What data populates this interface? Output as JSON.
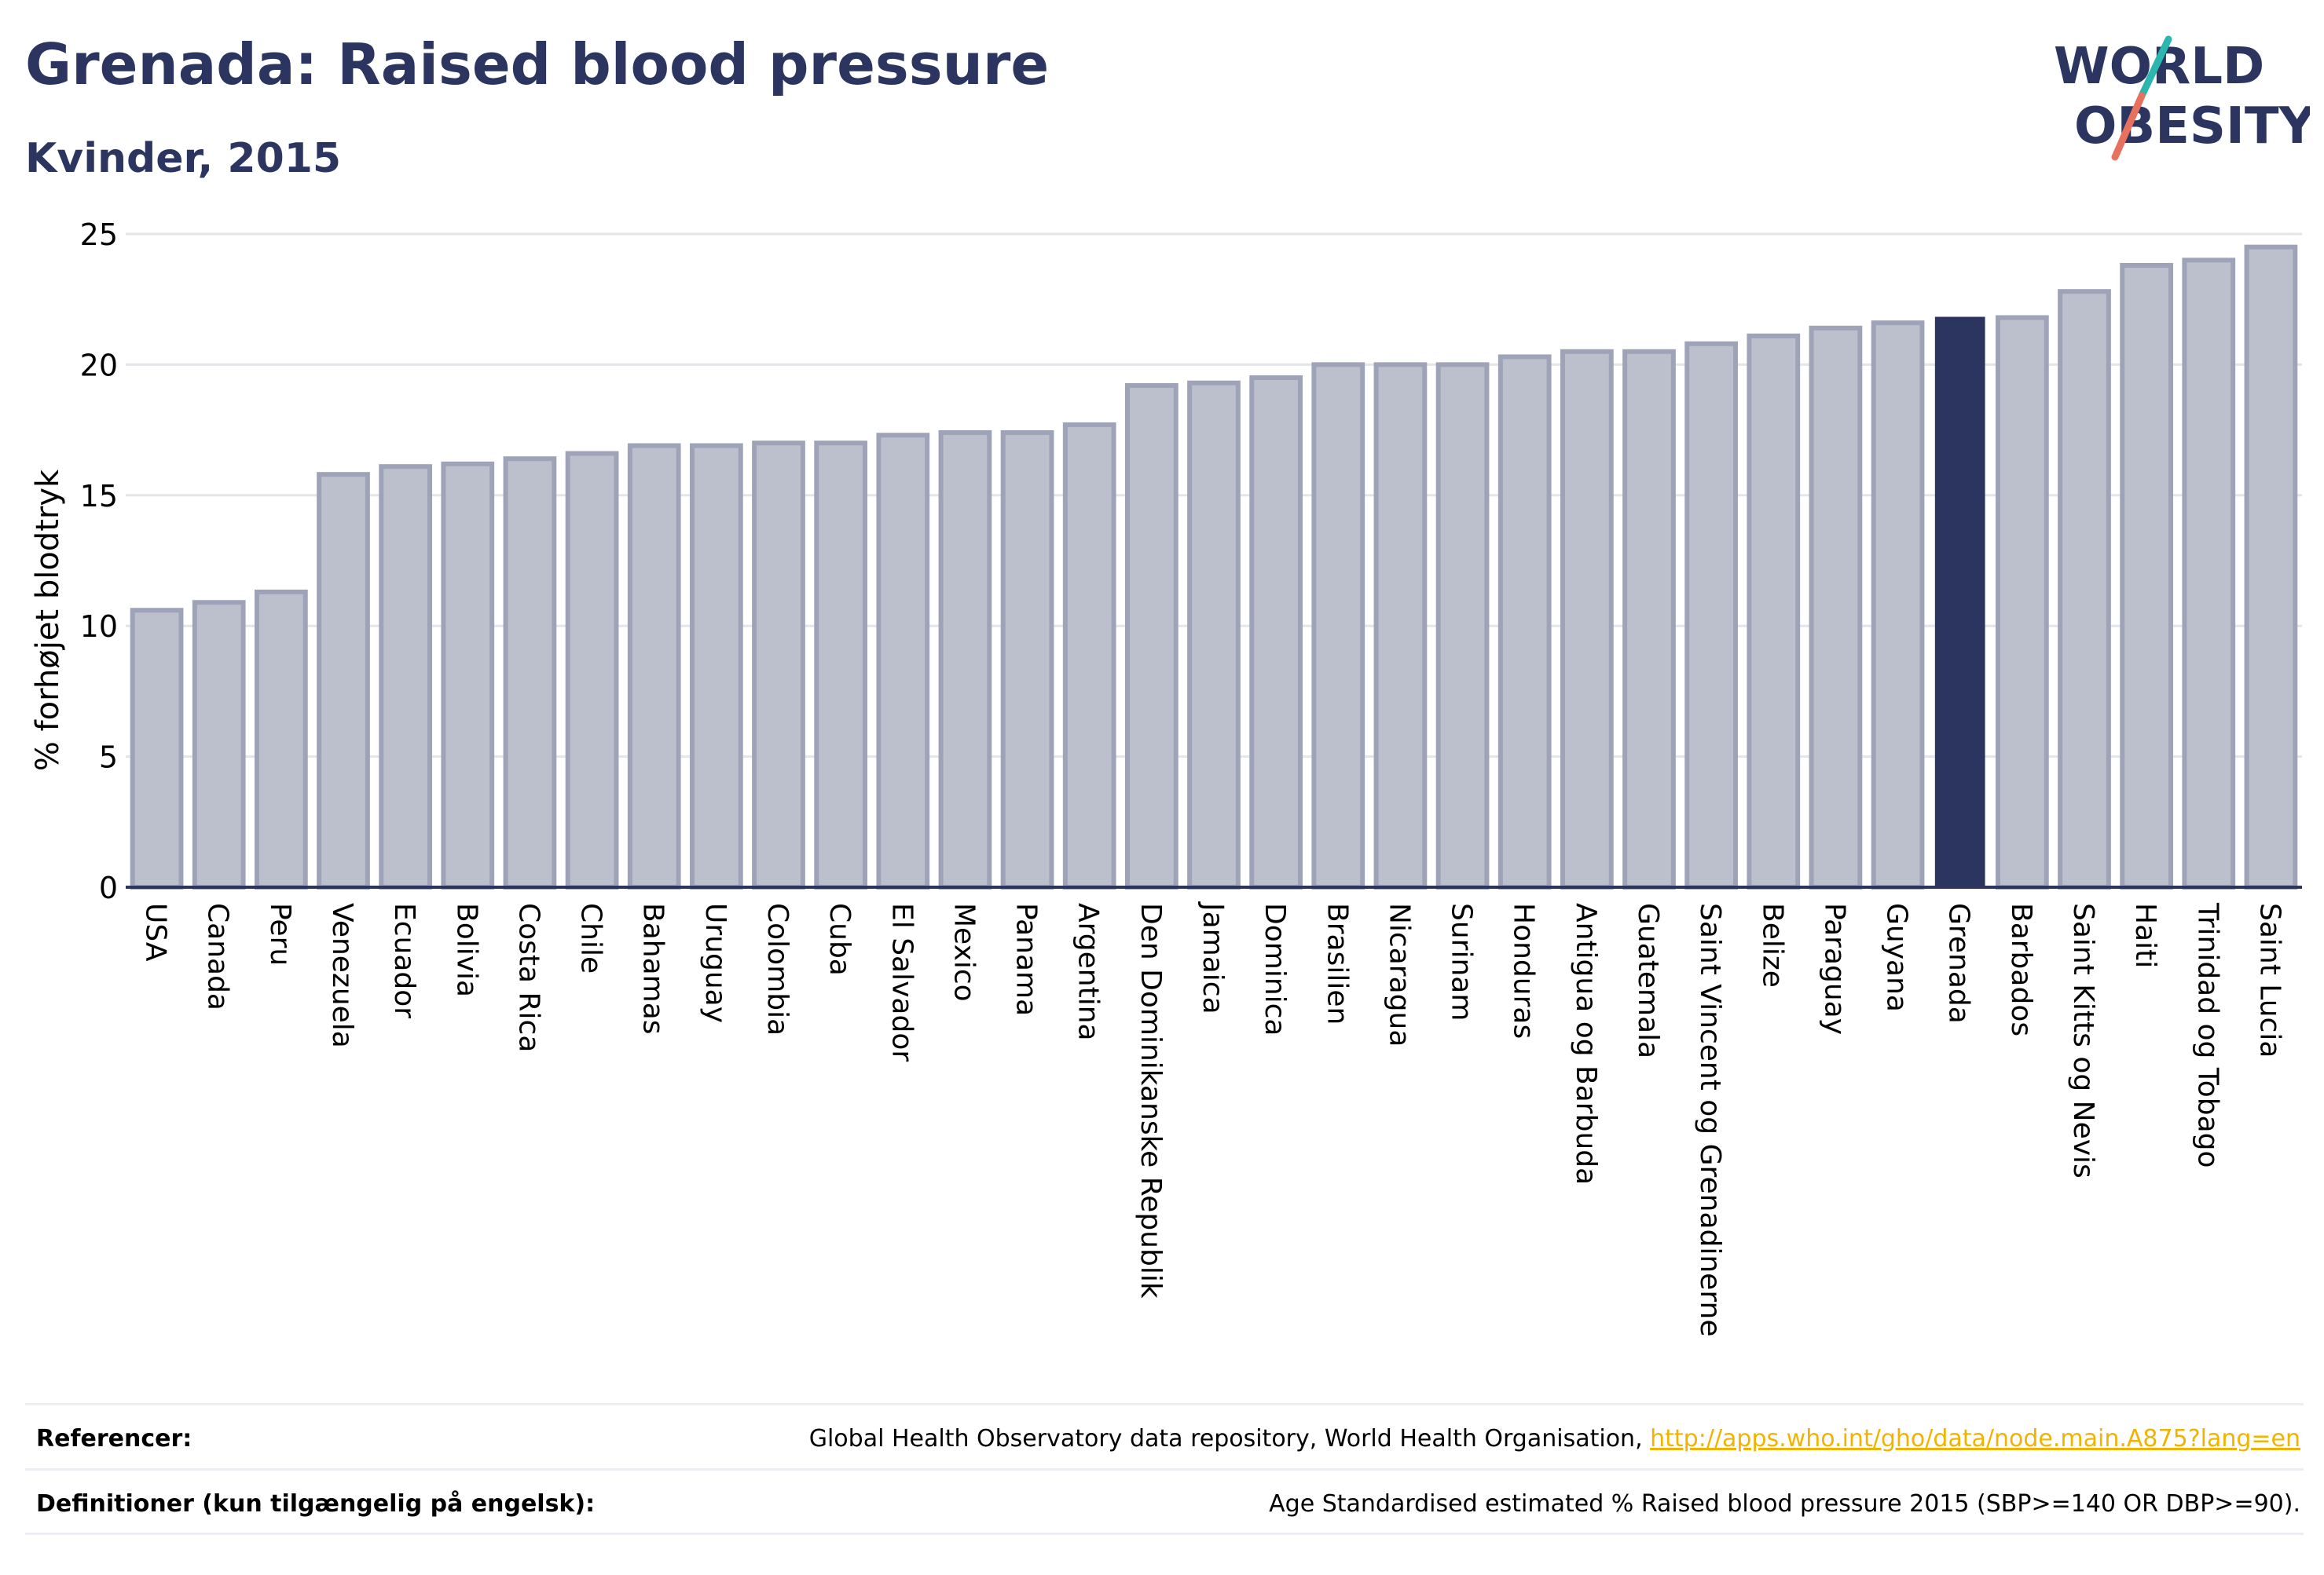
{
  "header": {
    "title": "Grenada: Raised blood pressure",
    "subtitle": "Kvinder, 2015"
  },
  "logo": {
    "line1": "WORLD",
    "line2": "OBESITY",
    "colors": {
      "text": "#2b3560",
      "slash_teal": "#2bb6b0",
      "slash_coral": "#e8705f"
    }
  },
  "colors": {
    "bar_default_fill": "#bcc0cd",
    "bar_default_stroke": "#9ea3b8",
    "bar_highlight": "#2b3560",
    "grid": "#e3e5ea",
    "axis": "#2b3560"
  },
  "chart_data": {
    "type": "bar",
    "title": "Grenada: Raised blood pressure",
    "subtitle": "Kvinder, 2015",
    "ylabel": "% forhøjet blodtryk",
    "xlabel": "",
    "ylim": [
      0,
      25
    ],
    "yticks": [
      0,
      5,
      10,
      15,
      20,
      25
    ],
    "grid": true,
    "highlight": "Grenada",
    "categories": [
      "USA",
      "Canada",
      "Peru",
      "Venezuela",
      "Ecuador",
      "Bolivia",
      "Costa Rica",
      "Chile",
      "Bahamas",
      "Uruguay",
      "Colombia",
      "Cuba",
      "El Salvador",
      "Mexico",
      "Panama",
      "Argentina",
      "Den Dominikanske Republik",
      "Jamaica",
      "Dominica",
      "Brasilien",
      "Nicaragua",
      "Surinam",
      "Honduras",
      "Antigua og Barbuda",
      "Guatemala",
      "Saint Vincent og Grenadinerne",
      "Belize",
      "Paraguay",
      "Guyana",
      "Grenada",
      "Barbados",
      "Saint Kitts og Nevis",
      "Haiti",
      "Trinidad og Tobago",
      "Saint Lucia"
    ],
    "values": [
      10.6,
      10.9,
      11.3,
      15.8,
      16.1,
      16.2,
      16.4,
      16.6,
      16.9,
      16.9,
      17.0,
      17.0,
      17.3,
      17.4,
      17.4,
      17.7,
      19.2,
      19.3,
      19.5,
      20.0,
      20.0,
      20.0,
      20.3,
      20.5,
      20.5,
      20.8,
      21.1,
      21.4,
      21.6,
      21.8,
      21.8,
      22.8,
      23.8,
      24.0,
      24.5
    ]
  },
  "footer": {
    "references_label": "Referencer:",
    "references_text": "Global Health Observatory data repository, World Health Organisation, ",
    "references_link": "http://apps.who.int/gho/data/node.main.A875?lang=en",
    "definitions_label": "Definitioner (kun tilgængelig på engelsk):",
    "definitions_text": "Age Standardised estimated % Raised blood pressure 2015 (SBP>=140 OR DBP>=90)."
  }
}
